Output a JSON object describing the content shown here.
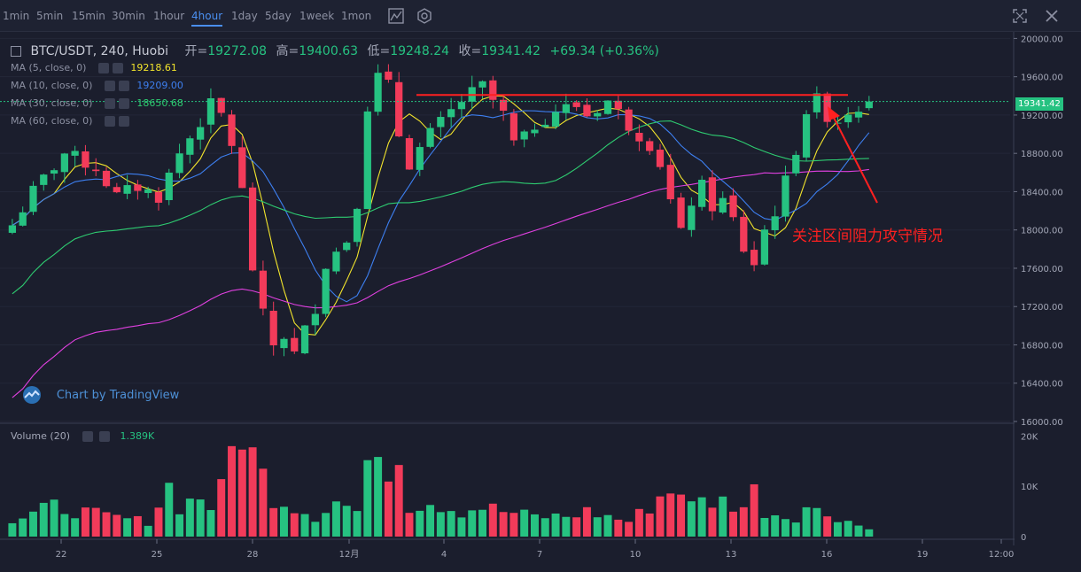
{
  "toolbar": {
    "timeframes": [
      "1min",
      "5min",
      "15min",
      "30min",
      "1hour",
      "4hour",
      "1day",
      "5day",
      "1week",
      "1mon"
    ],
    "active": "4hour"
  },
  "header": {
    "symbol": "BTC/USDT, 240, Huobi",
    "open_label": "开=",
    "open": "19272.08",
    "high_label": "高=",
    "high": "19400.63",
    "low_label": "低=",
    "low": "19248.24",
    "close_label": "收=",
    "close": "19341.42",
    "change": "+69.34 (+0.36%)"
  },
  "indicators": [
    {
      "label": "MA (5, close, 0)",
      "value": "19218.61",
      "color": "#f2e42c"
    },
    {
      "label": "MA (10, close, 0)",
      "value": "19209.00",
      "color": "#3d7ff0"
    },
    {
      "label": "MA (30, close, 0)",
      "value": "18650.68",
      "color": "#2ecc71"
    },
    {
      "label": "MA (60, close, 0)",
      "value": "",
      "color": "#e040e0"
    }
  ],
  "volume": {
    "label": "Volume (20)",
    "value": "1.389K"
  },
  "watermark": "Chart by TradingView",
  "annotation": "关注区间阻力攻守情况",
  "price_tag": "19341.42",
  "colors": {
    "up": "#26c281",
    "down": "#f23b5a",
    "bg": "#1b1e2d",
    "annotation": "#ff2020"
  },
  "chart_data": {
    "type": "candlestick",
    "y_ticks": [
      "20000.00",
      "19600.00",
      "19200.00",
      "18800.00",
      "18400.00",
      "18000.00",
      "17600.00",
      "17200.00",
      "16800.00",
      "16400.00",
      "16000.00"
    ],
    "ylim": [
      16000,
      20050
    ],
    "x_ticks": [
      "22",
      "25",
      "28",
      "12月",
      "4",
      "7",
      "10",
      "13",
      "16",
      "19",
      "12:00"
    ],
    "volume_ticks": [
      "20K",
      "10K",
      "0"
    ],
    "resistance_level": 19410,
    "last_price": 19341.42,
    "close_path": [
      [
        0,
        18050
      ],
      [
        2,
        18400
      ],
      [
        5,
        18800
      ],
      [
        8,
        18650
      ],
      [
        10,
        18350
      ],
      [
        12,
        18450
      ],
      [
        14,
        18350
      ],
      [
        16,
        18800
      ],
      [
        19,
        19300
      ],
      [
        20,
        19200
      ],
      [
        21,
        18900
      ],
      [
        22,
        18400
      ],
      [
        23,
        17600
      ],
      [
        24,
        17100
      ],
      [
        25,
        16800
      ],
      [
        26,
        16900
      ],
      [
        27,
        16700
      ],
      [
        28,
        16950
      ],
      [
        29,
        17200
      ],
      [
        30,
        17650
      ],
      [
        32,
        17900
      ],
      [
        33,
        18300
      ],
      [
        34,
        19300
      ],
      [
        35,
        19600
      ],
      [
        36,
        19500
      ],
      [
        37,
        19000
      ],
      [
        38,
        18700
      ],
      [
        40,
        19000
      ],
      [
        43,
        19350
      ],
      [
        45,
        19500
      ],
      [
        47,
        19200
      ],
      [
        48,
        18900
      ],
      [
        49,
        18950
      ],
      [
        50,
        19100
      ],
      [
        52,
        19250
      ],
      [
        54,
        19300
      ],
      [
        55,
        19200
      ],
      [
        57,
        19350
      ],
      [
        59,
        19100
      ],
      [
        61,
        18900
      ],
      [
        62,
        18700
      ],
      [
        63,
        18300
      ],
      [
        64,
        17950
      ],
      [
        65,
        18300
      ],
      [
        66,
        18450
      ],
      [
        67,
        18250
      ],
      [
        68,
        18300
      ],
      [
        69,
        18100
      ],
      [
        70,
        17800
      ],
      [
        71,
        17650
      ],
      [
        72,
        18000
      ],
      [
        73,
        18200
      ],
      [
        74,
        18500
      ],
      [
        75,
        18850
      ],
      [
        76,
        19250
      ],
      [
        77,
        19350
      ],
      [
        78,
        19200
      ],
      [
        79,
        19150
      ],
      [
        80,
        19250
      ],
      [
        81,
        19300
      ],
      [
        82,
        19341
      ]
    ],
    "volume_profile": [
      [
        0,
        3
      ],
      [
        4,
        6
      ],
      [
        9,
        4
      ],
      [
        13,
        3
      ],
      [
        15,
        10
      ],
      [
        16,
        6
      ],
      [
        18,
        8
      ],
      [
        19,
        6
      ],
      [
        20,
        9
      ],
      [
        21,
        17
      ],
      [
        22,
        22
      ],
      [
        23,
        16
      ],
      [
        24,
        12
      ],
      [
        25,
        8
      ],
      [
        27,
        6
      ],
      [
        29,
        4
      ],
      [
        31,
        7
      ],
      [
        33,
        5
      ],
      [
        34,
        12
      ],
      [
        35,
        21
      ],
      [
        36,
        12
      ],
      [
        37,
        19
      ],
      [
        38,
        6
      ],
      [
        40,
        7
      ],
      [
        43,
        5
      ],
      [
        45,
        6
      ],
      [
        47,
        5
      ],
      [
        50,
        4
      ],
      [
        53,
        4
      ],
      [
        55,
        5
      ],
      [
        57,
        4
      ],
      [
        59,
        3
      ],
      [
        61,
        6
      ],
      [
        62,
        8
      ],
      [
        63,
        9
      ],
      [
        64,
        10
      ],
      [
        65,
        6
      ],
      [
        66,
        7
      ],
      [
        68,
        7
      ],
      [
        70,
        6
      ],
      [
        71,
        9
      ],
      [
        72,
        5
      ],
      [
        74,
        4
      ],
      [
        75,
        4
      ],
      [
        76,
        6
      ],
      [
        77,
        5
      ],
      [
        79,
        4
      ],
      [
        82,
        1.4
      ]
    ]
  }
}
